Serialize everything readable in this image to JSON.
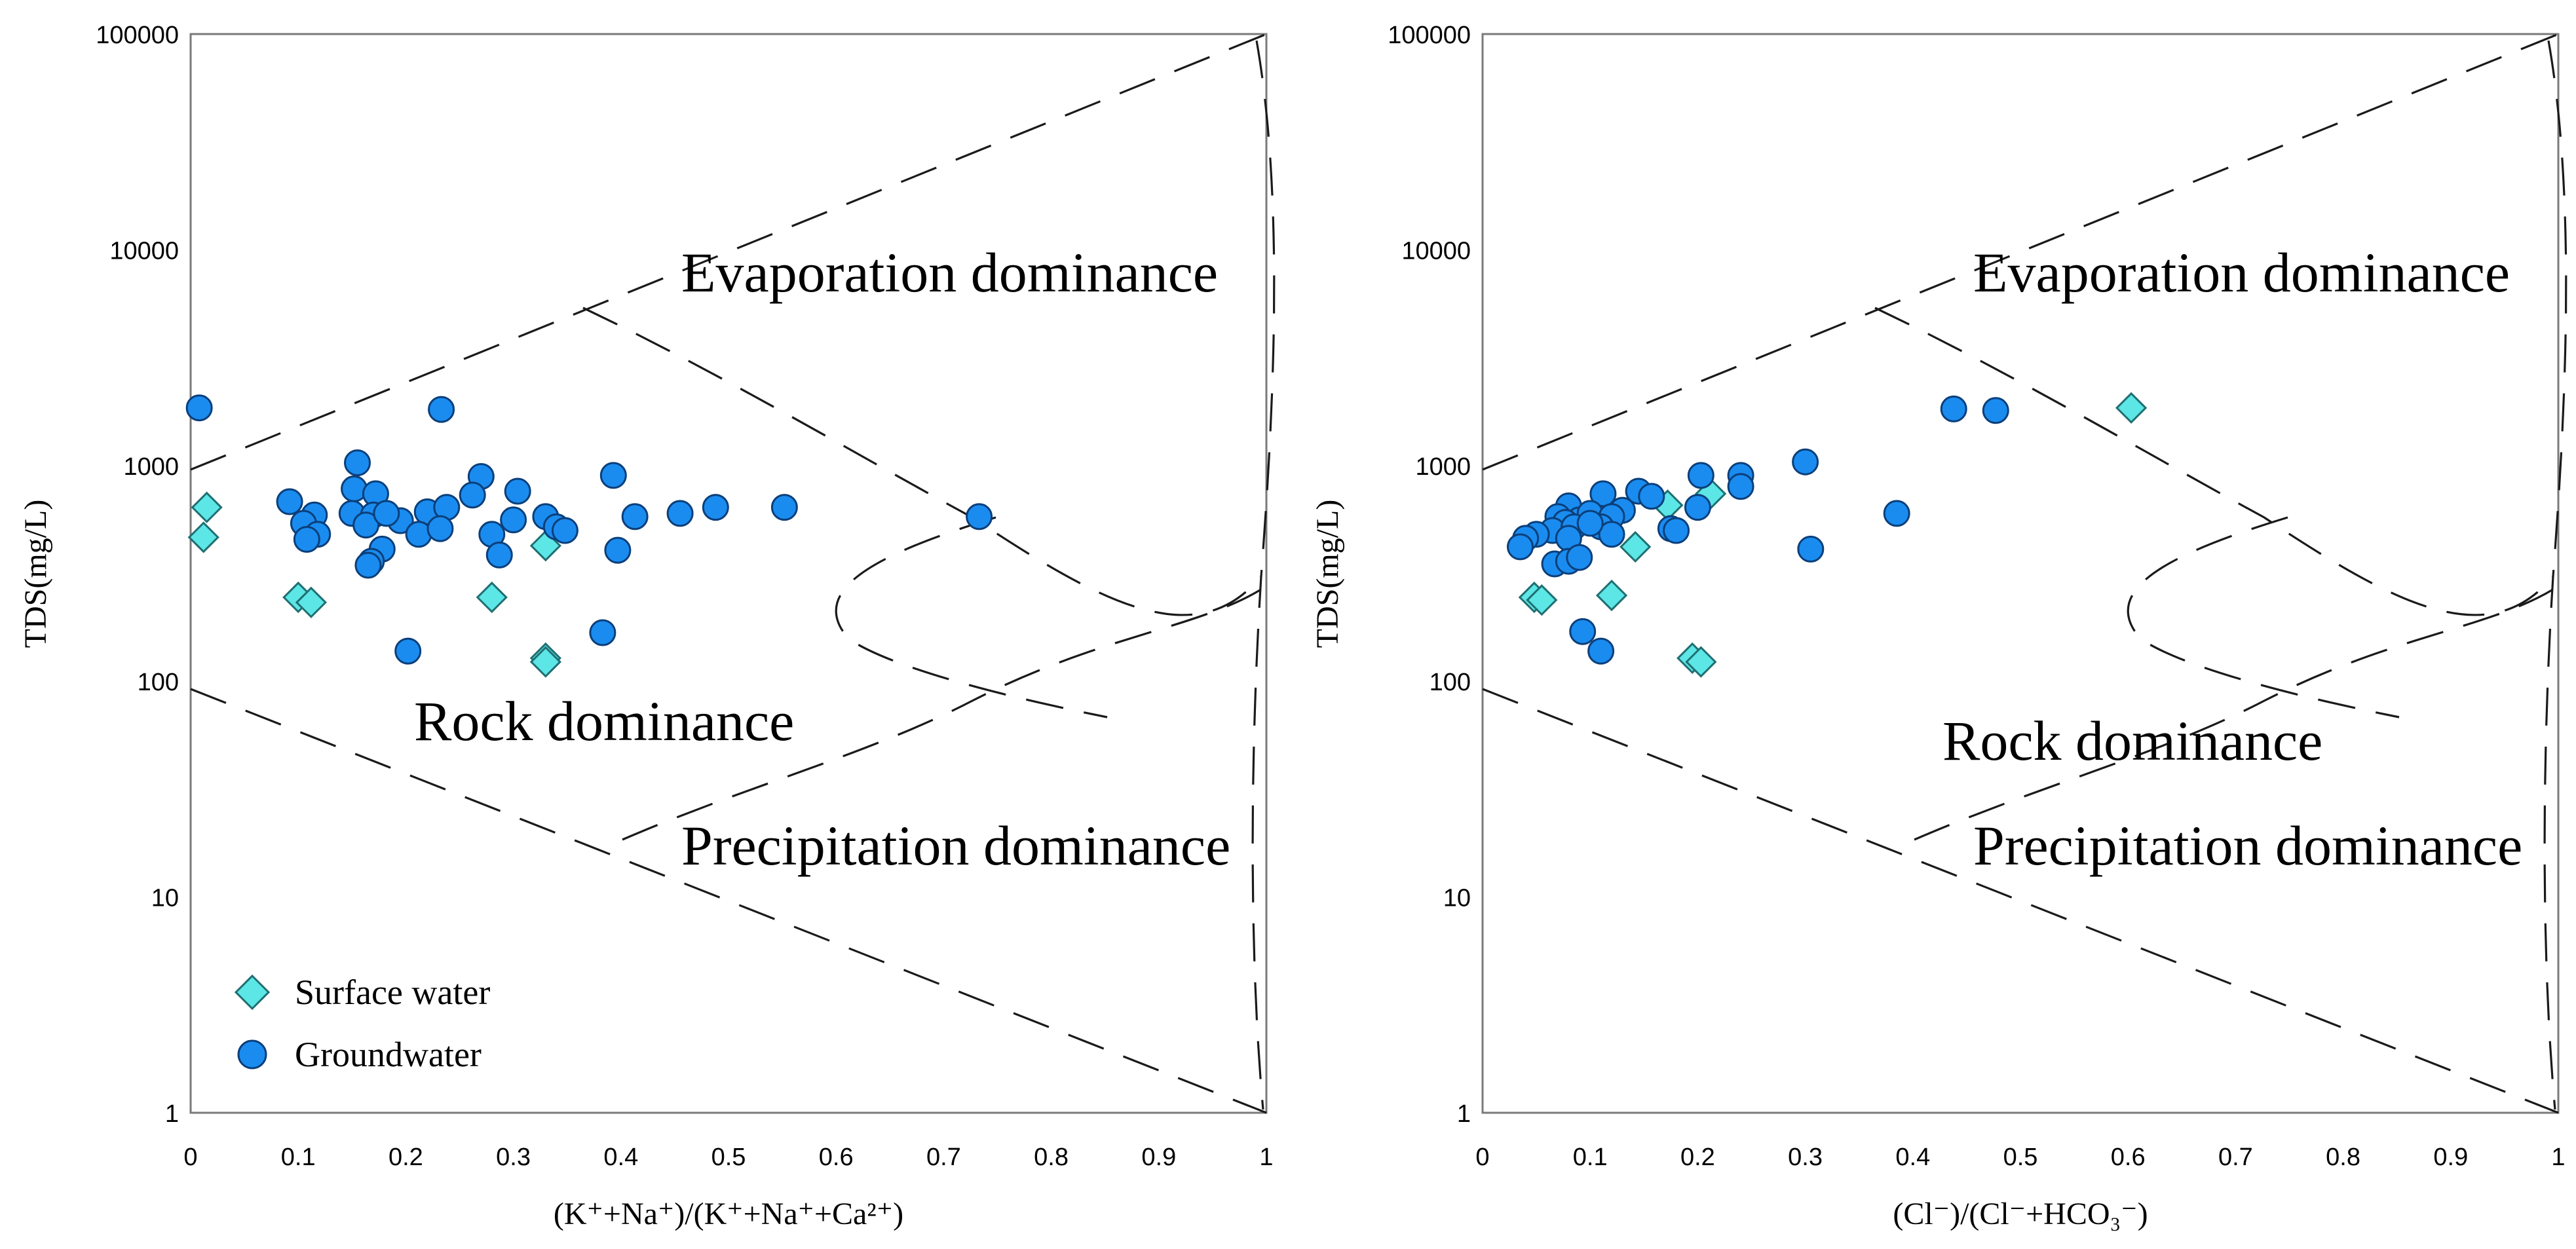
{
  "colors": {
    "surface_water": "#5de6e6",
    "groundwater": "#1a8cf0"
  },
  "legend": {
    "surface": "Surface water",
    "ground": "Groundwater"
  },
  "chart_data": [
    {
      "type": "scatter",
      "name": "cation-gibbs",
      "xlabel": "(K⁺+Na⁺)/(K⁺+Na⁺+Ca²⁺)",
      "ylabel": "TDS(mg/L)",
      "xlim": [
        0,
        1
      ],
      "ylim": [
        1,
        100000
      ],
      "yscale": "log",
      "x_ticks": [
        "0",
        "0.1",
        "0.2",
        "0.3",
        "0.4",
        "0.5",
        "0.6",
        "0.7",
        "0.8",
        "0.9",
        "1"
      ],
      "y_ticks": [
        "1",
        "10",
        "100",
        "1000",
        "10000",
        "100000"
      ],
      "zones": [
        "Evaporation dominance",
        "Rock dominance",
        "Precipitation dominance"
      ],
      "series": [
        {
          "name": "Surface water",
          "points": [
            [
              0.015,
              640
            ],
            [
              0.012,
              465
            ],
            [
              0.1,
              245
            ],
            [
              0.112,
              232
            ],
            [
              0.28,
              245
            ],
            [
              0.33,
              425
            ],
            [
              0.33,
              128
            ],
            [
              0.33,
              123
            ]
          ]
        },
        {
          "name": "Groundwater",
          "points": [
            [
              0.008,
              1850
            ],
            [
              0.233,
              1820
            ],
            [
              0.155,
              1030
            ],
            [
              0.27,
              890
            ],
            [
              0.393,
              900
            ],
            [
              0.092,
              680
            ],
            [
              0.152,
              780
            ],
            [
              0.172,
              740
            ],
            [
              0.262,
              730
            ],
            [
              0.304,
              760
            ],
            [
              0.115,
              590
            ],
            [
              0.15,
              600
            ],
            [
              0.17,
              590
            ],
            [
              0.195,
              555
            ],
            [
              0.22,
              610
            ],
            [
              0.238,
              640
            ],
            [
              0.33,
              580
            ],
            [
              0.413,
              580
            ],
            [
              0.455,
              600
            ],
            [
              0.488,
              640
            ],
            [
              0.552,
              640
            ],
            [
              0.733,
              580
            ],
            [
              0.105,
              540
            ],
            [
              0.118,
              480
            ],
            [
              0.108,
              455
            ],
            [
              0.163,
              530
            ],
            [
              0.182,
              600
            ],
            [
              0.212,
              480
            ],
            [
              0.232,
              510
            ],
            [
              0.28,
              480
            ],
            [
              0.3,
              560
            ],
            [
              0.34,
              520
            ],
            [
              0.348,
              500
            ],
            [
              0.178,
              410
            ],
            [
              0.168,
              360
            ],
            [
              0.165,
              345
            ],
            [
              0.287,
              385
            ],
            [
              0.397,
              405
            ],
            [
              0.202,
              138
            ],
            [
              0.383,
              168
            ]
          ]
        }
      ]
    },
    {
      "type": "scatter",
      "name": "anion-gibbs",
      "xlabel": "(Cl⁻)/(Cl⁻+HCO₃⁻)",
      "ylabel": "TDS(mg/L)",
      "xlim": [
        0,
        1
      ],
      "ylim": [
        1,
        100000
      ],
      "yscale": "log",
      "x_ticks": [
        "0",
        "0.1",
        "0.2",
        "0.3",
        "0.4",
        "0.5",
        "0.6",
        "0.7",
        "0.8",
        "0.9",
        "1"
      ],
      "y_ticks": [
        "1",
        "10",
        "100",
        "1000",
        "10000",
        "100000"
      ],
      "zones": [
        "Evaporation dominance",
        "Rock dominance",
        "Precipitation dominance"
      ],
      "series": [
        {
          "name": "Surface water",
          "points": [
            [
              0.603,
              1850
            ],
            [
              0.212,
              740
            ],
            [
              0.172,
              655
            ],
            [
              0.142,
              420
            ],
            [
              0.048,
              245
            ],
            [
              0.055,
              238
            ],
            [
              0.12,
              250
            ],
            [
              0.195,
              128
            ],
            [
              0.203,
              123
            ]
          ]
        },
        {
          "name": "Groundwater",
          "points": [
            [
              0.438,
              1830
            ],
            [
              0.477,
              1800
            ],
            [
              0.3,
              1040
            ],
            [
              0.203,
              900
            ],
            [
              0.24,
              900
            ],
            [
              0.24,
              800
            ],
            [
              0.145,
              760
            ],
            [
              0.157,
              720
            ],
            [
              0.112,
              740
            ],
            [
              0.08,
              650
            ],
            [
              0.2,
              640
            ],
            [
              0.13,
              620
            ],
            [
              0.07,
              580
            ],
            [
              0.09,
              560
            ],
            [
              0.1,
              600
            ],
            [
              0.12,
              580
            ],
            [
              0.077,
              545
            ],
            [
              0.065,
              500
            ],
            [
              0.11,
              520
            ],
            [
              0.05,
              480
            ],
            [
              0.04,
              460
            ],
            [
              0.035,
              420
            ],
            [
              0.12,
              480
            ],
            [
              0.085,
              520
            ],
            [
              0.175,
              510
            ],
            [
              0.18,
              500
            ],
            [
              0.08,
              460
            ],
            [
              0.305,
              410
            ],
            [
              0.385,
              600
            ],
            [
              0.067,
              350
            ],
            [
              0.08,
              360
            ],
            [
              0.09,
              375
            ],
            [
              0.093,
              170
            ],
            [
              0.11,
              138
            ],
            [
              0.1,
              540
            ]
          ]
        }
      ]
    }
  ]
}
